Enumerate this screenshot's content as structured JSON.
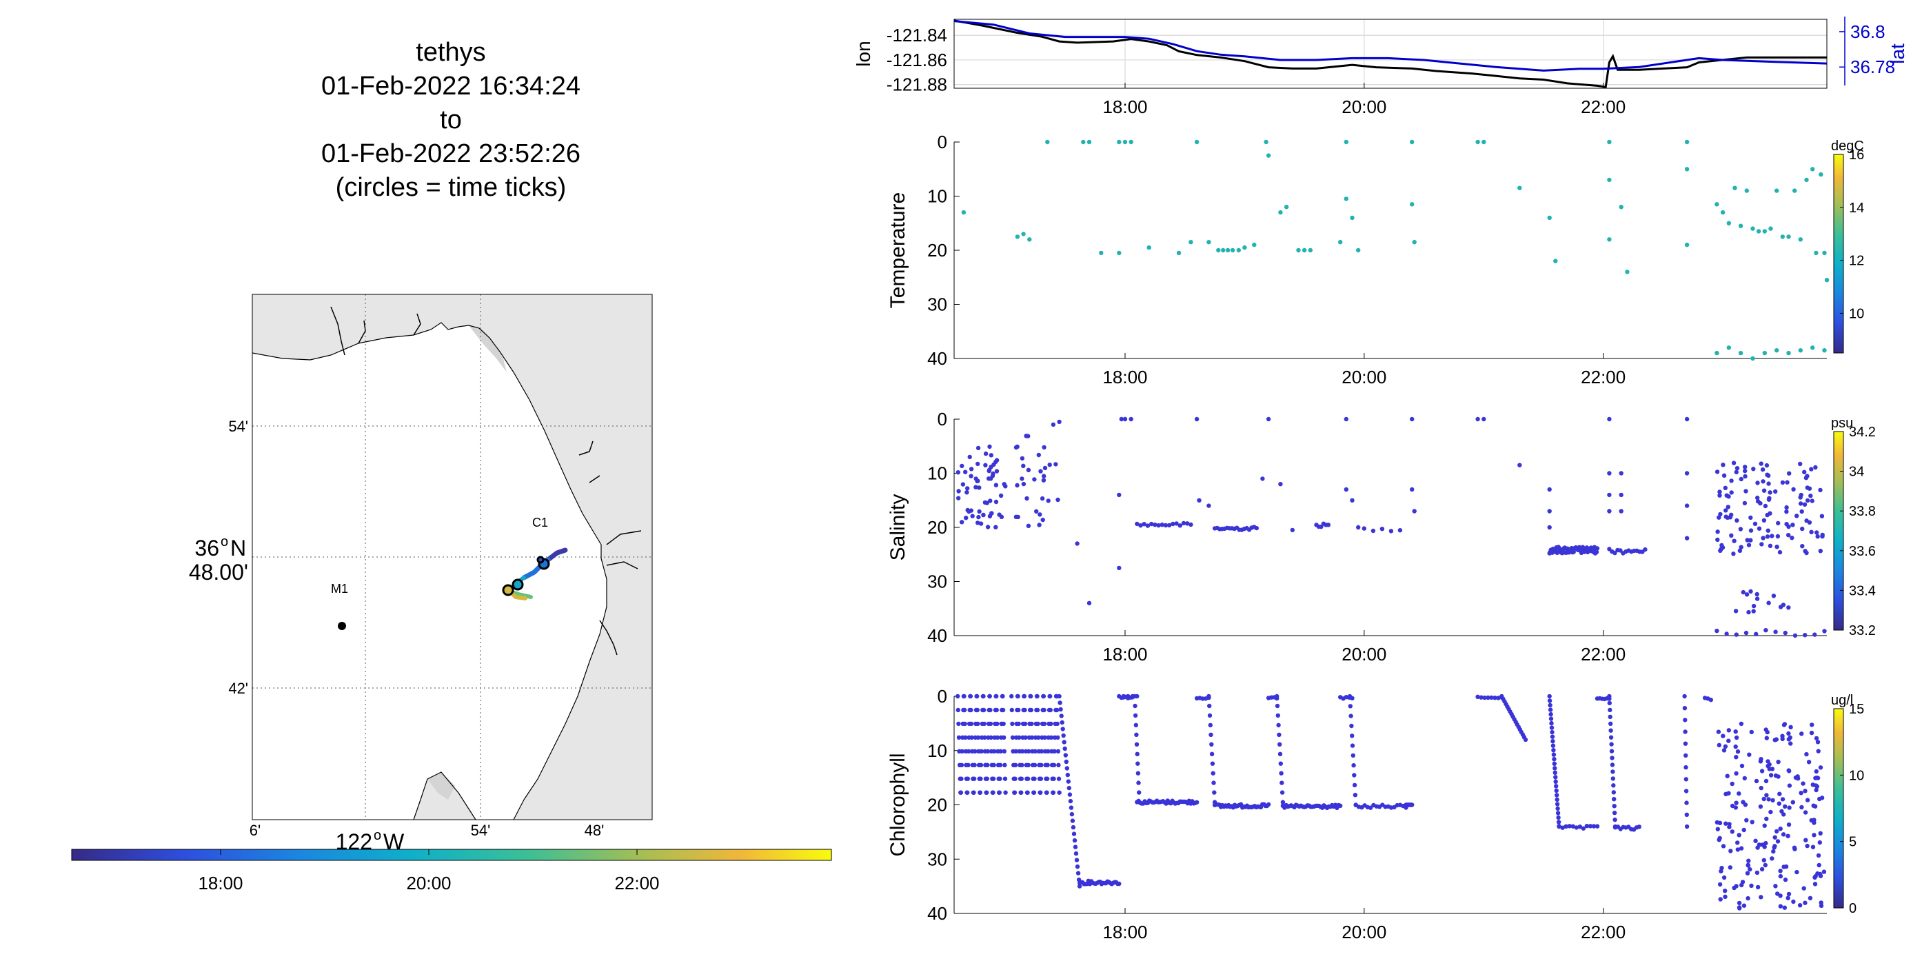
{
  "map": {
    "title_lines": [
      "tethys",
      "01-Feb-2022 16:34:24",
      "to",
      "01-Feb-2022 23:52:26",
      "(circles = time ticks)"
    ],
    "lat_ticks": [
      "54'",
      "48.00'",
      "42'"
    ],
    "lat_deg_label": "36",
    "lat_deg_suffix": "N",
    "lon_ticks": [
      "6'",
      "54'",
      "48'"
    ],
    "lon_deg_label": "122",
    "lon_deg_suffix": "W",
    "station_c1": "C1",
    "station_m1": "M1",
    "colorbar_ticks": [
      "18:00",
      "20:00",
      "22:00"
    ]
  },
  "chart_data": [
    {
      "type": "line",
      "name": "position",
      "ylabel": "lon",
      "y2label": "lat",
      "yticks": [
        "-121.84",
        "-121.86",
        "-121.88"
      ],
      "y2ticks": [
        "36.8",
        "36.78"
      ],
      "xticks": [
        "18:00",
        "20:00",
        "22:00"
      ],
      "xlim_hours": [
        16.57,
        23.87
      ],
      "ylim": [
        -121.883,
        -121.827
      ],
      "y2lim": [
        36.768,
        36.807
      ],
      "grid": true,
      "series": [
        {
          "color": "#000000",
          "points": [
            [
              16.57,
              -121.828
            ],
            [
              16.8,
              -121.832
            ],
            [
              17.1,
              -121.838
            ],
            [
              17.3,
              -121.841
            ],
            [
              17.45,
              -121.845
            ],
            [
              17.6,
              -121.846
            ],
            [
              17.9,
              -121.845
            ],
            [
              18.05,
              -121.843
            ],
            [
              18.2,
              -121.845
            ],
            [
              18.35,
              -121.848
            ],
            [
              18.45,
              -121.853
            ],
            [
              18.6,
              -121.856
            ],
            [
              18.8,
              -121.858
            ],
            [
              19.0,
              -121.861
            ],
            [
              19.2,
              -121.866
            ],
            [
              19.4,
              -121.867
            ],
            [
              19.6,
              -121.867
            ],
            [
              19.9,
              -121.864
            ],
            [
              20.1,
              -121.866
            ],
            [
              20.4,
              -121.867
            ],
            [
              20.6,
              -121.869
            ],
            [
              20.9,
              -121.871
            ],
            [
              21.1,
              -121.873
            ],
            [
              21.3,
              -121.875
            ],
            [
              21.5,
              -121.876
            ],
            [
              21.7,
              -121.879
            ],
            [
              21.95,
              -121.881
            ],
            [
              22.02,
              -121.882
            ],
            [
              22.05,
              -121.862
            ],
            [
              22.08,
              -121.857
            ],
            [
              22.12,
              -121.868
            ],
            [
              22.3,
              -121.868
            ],
            [
              22.5,
              -121.867
            ],
            [
              22.7,
              -121.866
            ],
            [
              22.8,
              -121.862
            ],
            [
              23.0,
              -121.86
            ],
            [
              23.2,
              -121.858
            ],
            [
              23.5,
              -121.858
            ],
            [
              23.87,
              -121.858
            ]
          ]
        },
        {
          "color": "#0000cc",
          "points": [
            [
              16.57,
              36.806
            ],
            [
              16.9,
              36.804
            ],
            [
              17.2,
              36.799
            ],
            [
              17.5,
              36.797
            ],
            [
              17.8,
              36.797
            ],
            [
              18.0,
              36.797
            ],
            [
              18.2,
              36.796
            ],
            [
              18.4,
              36.793
            ],
            [
              18.6,
              36.789
            ],
            [
              18.8,
              36.787
            ],
            [
              19.0,
              36.786
            ],
            [
              19.3,
              36.784
            ],
            [
              19.6,
              36.784
            ],
            [
              19.9,
              36.785
            ],
            [
              20.2,
              36.785
            ],
            [
              20.5,
              36.784
            ],
            [
              20.8,
              36.782
            ],
            [
              21.1,
              36.78
            ],
            [
              21.5,
              36.778
            ],
            [
              21.8,
              36.779
            ],
            [
              22.0,
              36.779
            ],
            [
              22.3,
              36.78
            ],
            [
              22.6,
              36.783
            ],
            [
              22.8,
              36.785
            ],
            [
              23.0,
              36.784
            ],
            [
              23.4,
              36.783
            ],
            [
              23.87,
              36.782
            ]
          ]
        }
      ]
    },
    {
      "type": "scatter",
      "name": "temperature",
      "ylabel": "Temperature",
      "yticks": [
        "0",
        "10",
        "20",
        "30",
        "40"
      ],
      "xticks": [
        "18:00",
        "20:00",
        "22:00"
      ],
      "xlim_hours": [
        16.57,
        23.87
      ],
      "ylim": [
        0,
        40
      ],
      "colorbar": {
        "unit": "degC",
        "ticks": [
          "16",
          "14",
          "12",
          "10"
        ],
        "range": [
          8.5,
          16
        ]
      },
      "point_color": "#22b2b0"
    },
    {
      "type": "scatter",
      "name": "salinity",
      "ylabel": "Salinity",
      "yticks": [
        "0",
        "10",
        "20",
        "30",
        "40"
      ],
      "xticks": [
        "18:00",
        "20:00",
        "22:00"
      ],
      "xlim_hours": [
        16.57,
        23.87
      ],
      "ylim": [
        0,
        40
      ],
      "colorbar": {
        "unit": "psu",
        "ticks": [
          "34.2",
          "34",
          "33.8",
          "33.6",
          "33.4",
          "33.2"
        ],
        "range": [
          33.2,
          34.2
        ]
      },
      "point_color": "#3b35d6"
    },
    {
      "type": "scatter",
      "name": "chlorophyll",
      "ylabel": "Chlorophyll",
      "yticks": [
        "0",
        "10",
        "20",
        "30",
        "40"
      ],
      "xticks": [
        "18:00",
        "20:00",
        "22:00"
      ],
      "xlim_hours": [
        16.57,
        23.87
      ],
      "ylim": [
        0,
        40
      ],
      "colorbar": {
        "unit": "ug/l",
        "ticks": [
          "15",
          "10",
          "5",
          "0"
        ],
        "range": [
          0,
          15
        ]
      },
      "point_color": "#3a33d8"
    }
  ]
}
